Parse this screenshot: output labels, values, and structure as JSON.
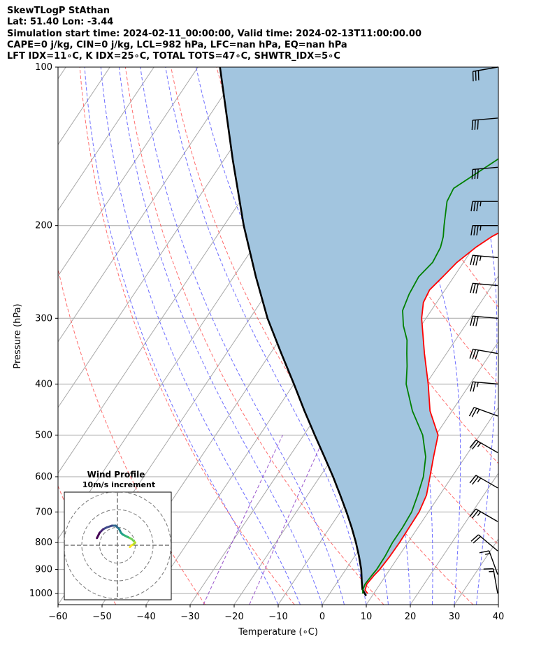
{
  "header": {
    "line1": "SkewTLogP StAthan",
    "line2": "Lat: 51.40   Lon: -3.44",
    "line3": "Simulation start time: 2024-02-11_00:00:00, Valid time: 2024-02-13T11:00:00.00",
    "line4": "CAPE=0 j/kg, CIN=0 j/kg, LCL=982 hPa, LFC=nan hPa, EQ=nan hPa",
    "line5": "LFT IDX=11∘C, K IDX=25∘C, TOTAL TOTS=47∘C, SHWTR_IDX=5∘C"
  },
  "chart_data": {
    "type": "line",
    "title": "SkewTLogP StAthan",
    "xlabel": "Temperature (∘C)",
    "ylabel": "Pressure (hPa)",
    "xlim": [
      -60,
      40
    ],
    "ylim": [
      1050,
      100
    ],
    "y_scale": "log",
    "x_ticks": [
      -60,
      -50,
      -40,
      -30,
      -20,
      -10,
      0,
      10,
      20,
      30,
      40
    ],
    "x_tick_labels": [
      "−60",
      "−50",
      "−40",
      "−30",
      "−20",
      "−10",
      "0",
      "10",
      "20",
      "30",
      "40"
    ],
    "y_ticks": [
      1000,
      900,
      800,
      700,
      600,
      500,
      400,
      300,
      200,
      100
    ],
    "y_tick_labels": [
      "1000",
      "900",
      "800",
      "700",
      "600",
      "500",
      "400",
      "300",
      "200",
      "100"
    ],
    "grid": true,
    "colors": {
      "temperature": "#ff0000",
      "dewpoint": "#008000",
      "parcel": "#000000",
      "cape_fill": "#a2c5df",
      "dry_adiabat": "#ff5555",
      "moist_adiabat": "#5555ff",
      "mixing_ratio": "#9955cc",
      "isotherm": "#a8a8a8",
      "isobar": "#a8a8a8"
    },
    "series": [
      {
        "name": "temperature",
        "points": [
          [
            1000,
            8.6
          ],
          [
            985,
            7.5
          ],
          [
            960,
            7.0
          ],
          [
            925,
            7.3
          ],
          [
            900,
            7.7
          ],
          [
            850,
            8.0
          ],
          [
            800,
            8.1
          ],
          [
            750,
            8.0
          ],
          [
            700,
            7.9
          ],
          [
            650,
            7.0
          ],
          [
            600,
            5.0
          ],
          [
            550,
            2.8
          ],
          [
            500,
            0.5
          ],
          [
            450,
            -5.0
          ],
          [
            400,
            -9.5
          ],
          [
            350,
            -15.0
          ],
          [
            300,
            -21.0
          ],
          [
            280,
            -23.0
          ],
          [
            265,
            -23.5
          ],
          [
            250,
            -22.5
          ],
          [
            235,
            -21.5
          ],
          [
            220,
            -19.5
          ],
          [
            210,
            -17.5
          ],
          [
            200,
            -14.5
          ],
          [
            185,
            -11.5
          ],
          [
            170,
            -9.5
          ],
          [
            150,
            -5.5
          ],
          [
            130,
            -3.0
          ],
          [
            115,
            -1.5
          ],
          [
            100,
            -1.0
          ]
        ]
      },
      {
        "name": "dewpoint",
        "points": [
          [
            1000,
            7.5
          ],
          [
            985,
            7.0
          ],
          [
            960,
            6.6
          ],
          [
            925,
            6.8
          ],
          [
            900,
            7.0
          ],
          [
            850,
            6.9
          ],
          [
            800,
            6.5
          ],
          [
            750,
            6.5
          ],
          [
            700,
            6.2
          ],
          [
            650,
            5.0
          ],
          [
            600,
            3.5
          ],
          [
            550,
            1.0
          ],
          [
            500,
            -3.0
          ],
          [
            450,
            -9.0
          ],
          [
            400,
            -14.5
          ],
          [
            370,
            -17.0
          ],
          [
            350,
            -19.0
          ],
          [
            330,
            -21.0
          ],
          [
            310,
            -24.0
          ],
          [
            290,
            -26.5
          ],
          [
            270,
            -27.5
          ],
          [
            250,
            -28.0
          ],
          [
            235,
            -27.0
          ],
          [
            220,
            -27.5
          ],
          [
            210,
            -28.5
          ],
          [
            200,
            -30.0
          ],
          [
            180,
            -33.0
          ],
          [
            170,
            -33.5
          ],
          [
            150,
            -28.0
          ],
          [
            130,
            -23.0
          ],
          [
            115,
            -19.0
          ],
          [
            100,
            -15.5
          ]
        ]
      },
      {
        "name": "parcel",
        "points": [
          [
            1010,
            8.6
          ],
          [
            982,
            6.8
          ],
          [
            950,
            5.5
          ],
          [
            900,
            3.5
          ],
          [
            850,
            1.0
          ],
          [
            800,
            -1.8
          ],
          [
            750,
            -5.0
          ],
          [
            700,
            -8.6
          ],
          [
            650,
            -12.6
          ],
          [
            600,
            -17.0
          ],
          [
            550,
            -22.0
          ],
          [
            500,
            -27.5
          ],
          [
            450,
            -33.5
          ],
          [
            400,
            -40.0
          ],
          [
            350,
            -47.5
          ],
          [
            300,
            -56.0
          ],
          [
            250,
            -65.0
          ],
          [
            200,
            -75.5
          ],
          [
            150,
            -88.0
          ],
          [
            100,
            -105.0
          ]
        ]
      }
    ],
    "wind_barbs": [
      {
        "p": 100,
        "speed": 30,
        "dir": 260
      },
      {
        "p": 125,
        "speed": 30,
        "dir": 265
      },
      {
        "p": 155,
        "speed": 30,
        "dir": 265
      },
      {
        "p": 180,
        "speed": 35,
        "dir": 270
      },
      {
        "p": 200,
        "speed": 35,
        "dir": 270
      },
      {
        "p": 230,
        "speed": 35,
        "dir": 275
      },
      {
        "p": 260,
        "speed": 30,
        "dir": 275
      },
      {
        "p": 300,
        "speed": 30,
        "dir": 275
      },
      {
        "p": 350,
        "speed": 30,
        "dir": 280
      },
      {
        "p": 400,
        "speed": 25,
        "dir": 275
      },
      {
        "p": 460,
        "speed": 25,
        "dir": 290
      },
      {
        "p": 540,
        "speed": 25,
        "dir": 300
      },
      {
        "p": 630,
        "speed": 25,
        "dir": 300
      },
      {
        "p": 730,
        "speed": 25,
        "dir": 300
      },
      {
        "p": 830,
        "speed": 20,
        "dir": 310
      },
      {
        "p": 920,
        "speed": 15,
        "dir": 340
      },
      {
        "p": 1000,
        "speed": 15,
        "dir": 350
      }
    ],
    "hodograph": {
      "title": "Wind Profile",
      "subtitle": "10m/s increment",
      "rings_ms": [
        10,
        20,
        30
      ],
      "colormap": "viridis",
      "points": [
        [
          7,
          -1
        ],
        [
          8,
          0
        ],
        [
          9,
          0.5
        ],
        [
          10,
          1.5
        ],
        [
          9,
          2.5
        ],
        [
          8,
          3.5
        ],
        [
          6,
          4.5
        ],
        [
          4,
          5.5
        ],
        [
          3,
          6
        ],
        [
          2,
          7
        ],
        [
          1.5,
          8
        ],
        [
          1,
          9
        ],
        [
          0,
          10
        ],
        [
          -1,
          11
        ],
        [
          -3,
          11
        ],
        [
          -6,
          10
        ],
        [
          -8,
          9
        ],
        [
          -9,
          8
        ],
        [
          -10,
          7
        ],
        [
          -11.5,
          4
        ]
      ]
    }
  }
}
